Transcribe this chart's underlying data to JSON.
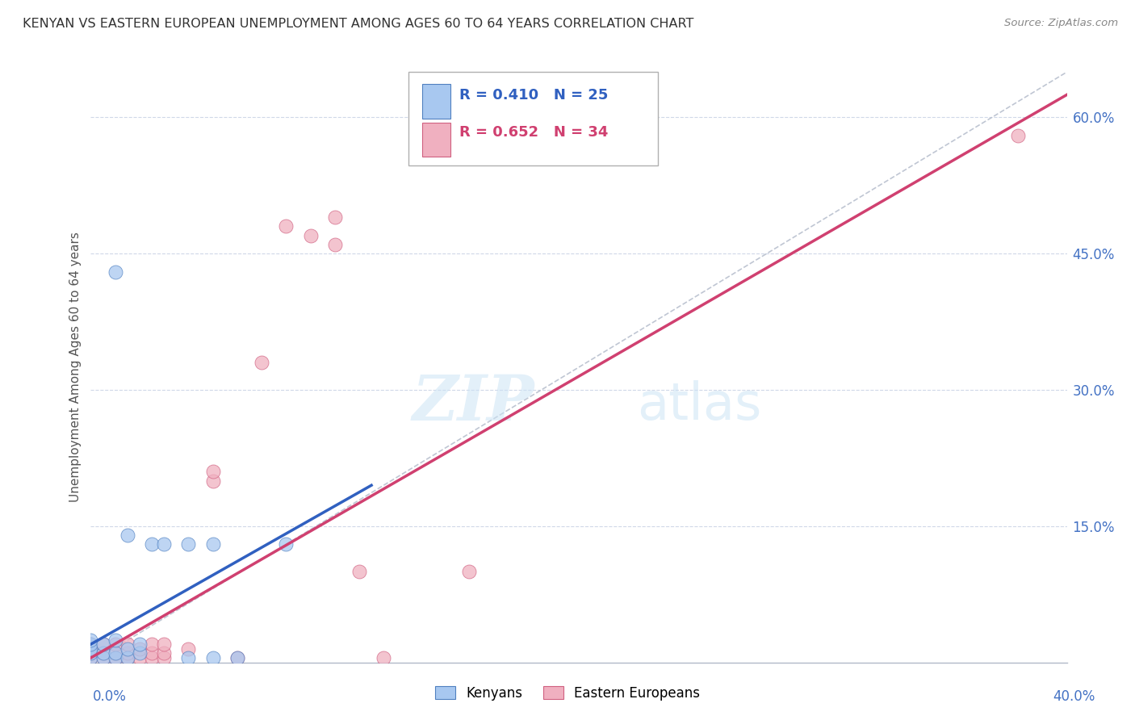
{
  "title": "KENYAN VS EASTERN EUROPEAN UNEMPLOYMENT AMONG AGES 60 TO 64 YEARS CORRELATION CHART",
  "source": "Source: ZipAtlas.com",
  "xlabel_bottom_left": "0.0%",
  "xlabel_bottom_right": "40.0%",
  "ylabel": "Unemployment Among Ages 60 to 64 years",
  "legend_blue_R": "R = 0.410",
  "legend_blue_N": "N = 25",
  "legend_pink_R": "R = 0.652",
  "legend_pink_N": "N = 34",
  "legend_label_blue": "Kenyans",
  "legend_label_pink": "Eastern Europeans",
  "xlim": [
    0.0,
    0.4
  ],
  "ylim": [
    0.0,
    0.65
  ],
  "yticks": [
    0.15,
    0.3,
    0.45,
    0.6
  ],
  "ytick_labels": [
    "15.0%",
    "30.0%",
    "45.0%",
    "60.0%"
  ],
  "watermark_zip": "ZIP",
  "watermark_atlas": "atlas",
  "blue_color": "#a8c8f0",
  "blue_edge_color": "#5080c0",
  "pink_color": "#f0b0c0",
  "pink_edge_color": "#d06080",
  "blue_line_color": "#3060c0",
  "pink_line_color": "#d04070",
  "diag_line_color": "#b0b8c8",
  "blue_scatter_x": [
    0.0,
    0.0,
    0.0,
    0.0,
    0.0,
    0.005,
    0.005,
    0.005,
    0.01,
    0.01,
    0.01,
    0.015,
    0.015,
    0.02,
    0.02,
    0.025,
    0.03,
    0.04,
    0.04,
    0.05,
    0.05,
    0.06,
    0.01,
    0.015,
    0.08
  ],
  "blue_scatter_y": [
    0.005,
    0.01,
    0.015,
    0.02,
    0.025,
    0.005,
    0.01,
    0.02,
    0.005,
    0.01,
    0.025,
    0.005,
    0.015,
    0.01,
    0.02,
    0.13,
    0.13,
    0.005,
    0.13,
    0.005,
    0.13,
    0.005,
    0.43,
    0.14,
    0.13
  ],
  "pink_scatter_x": [
    0.0,
    0.0,
    0.0,
    0.0,
    0.005,
    0.005,
    0.005,
    0.01,
    0.01,
    0.01,
    0.015,
    0.015,
    0.015,
    0.02,
    0.02,
    0.025,
    0.025,
    0.025,
    0.03,
    0.03,
    0.03,
    0.04,
    0.05,
    0.05,
    0.06,
    0.07,
    0.08,
    0.09,
    0.1,
    0.1,
    0.11,
    0.12,
    0.155,
    0.38
  ],
  "pink_scatter_y": [
    0.005,
    0.01,
    0.015,
    0.02,
    0.005,
    0.01,
    0.02,
    0.005,
    0.01,
    0.02,
    0.005,
    0.01,
    0.02,
    0.005,
    0.015,
    0.005,
    0.01,
    0.02,
    0.005,
    0.01,
    0.02,
    0.015,
    0.2,
    0.21,
    0.005,
    0.33,
    0.48,
    0.47,
    0.46,
    0.49,
    0.1,
    0.005,
    0.1,
    0.58
  ],
  "blue_line_x": [
    0.0,
    0.115
  ],
  "blue_line_y": [
    0.02,
    0.195
  ],
  "pink_line_x": [
    0.0,
    0.4
  ],
  "pink_line_y": [
    0.005,
    0.625
  ],
  "diag_line_x": [
    0.0,
    0.4
  ],
  "diag_line_y": [
    0.0,
    0.65
  ],
  "background_color": "#ffffff",
  "grid_color": "#d0d8e8"
}
